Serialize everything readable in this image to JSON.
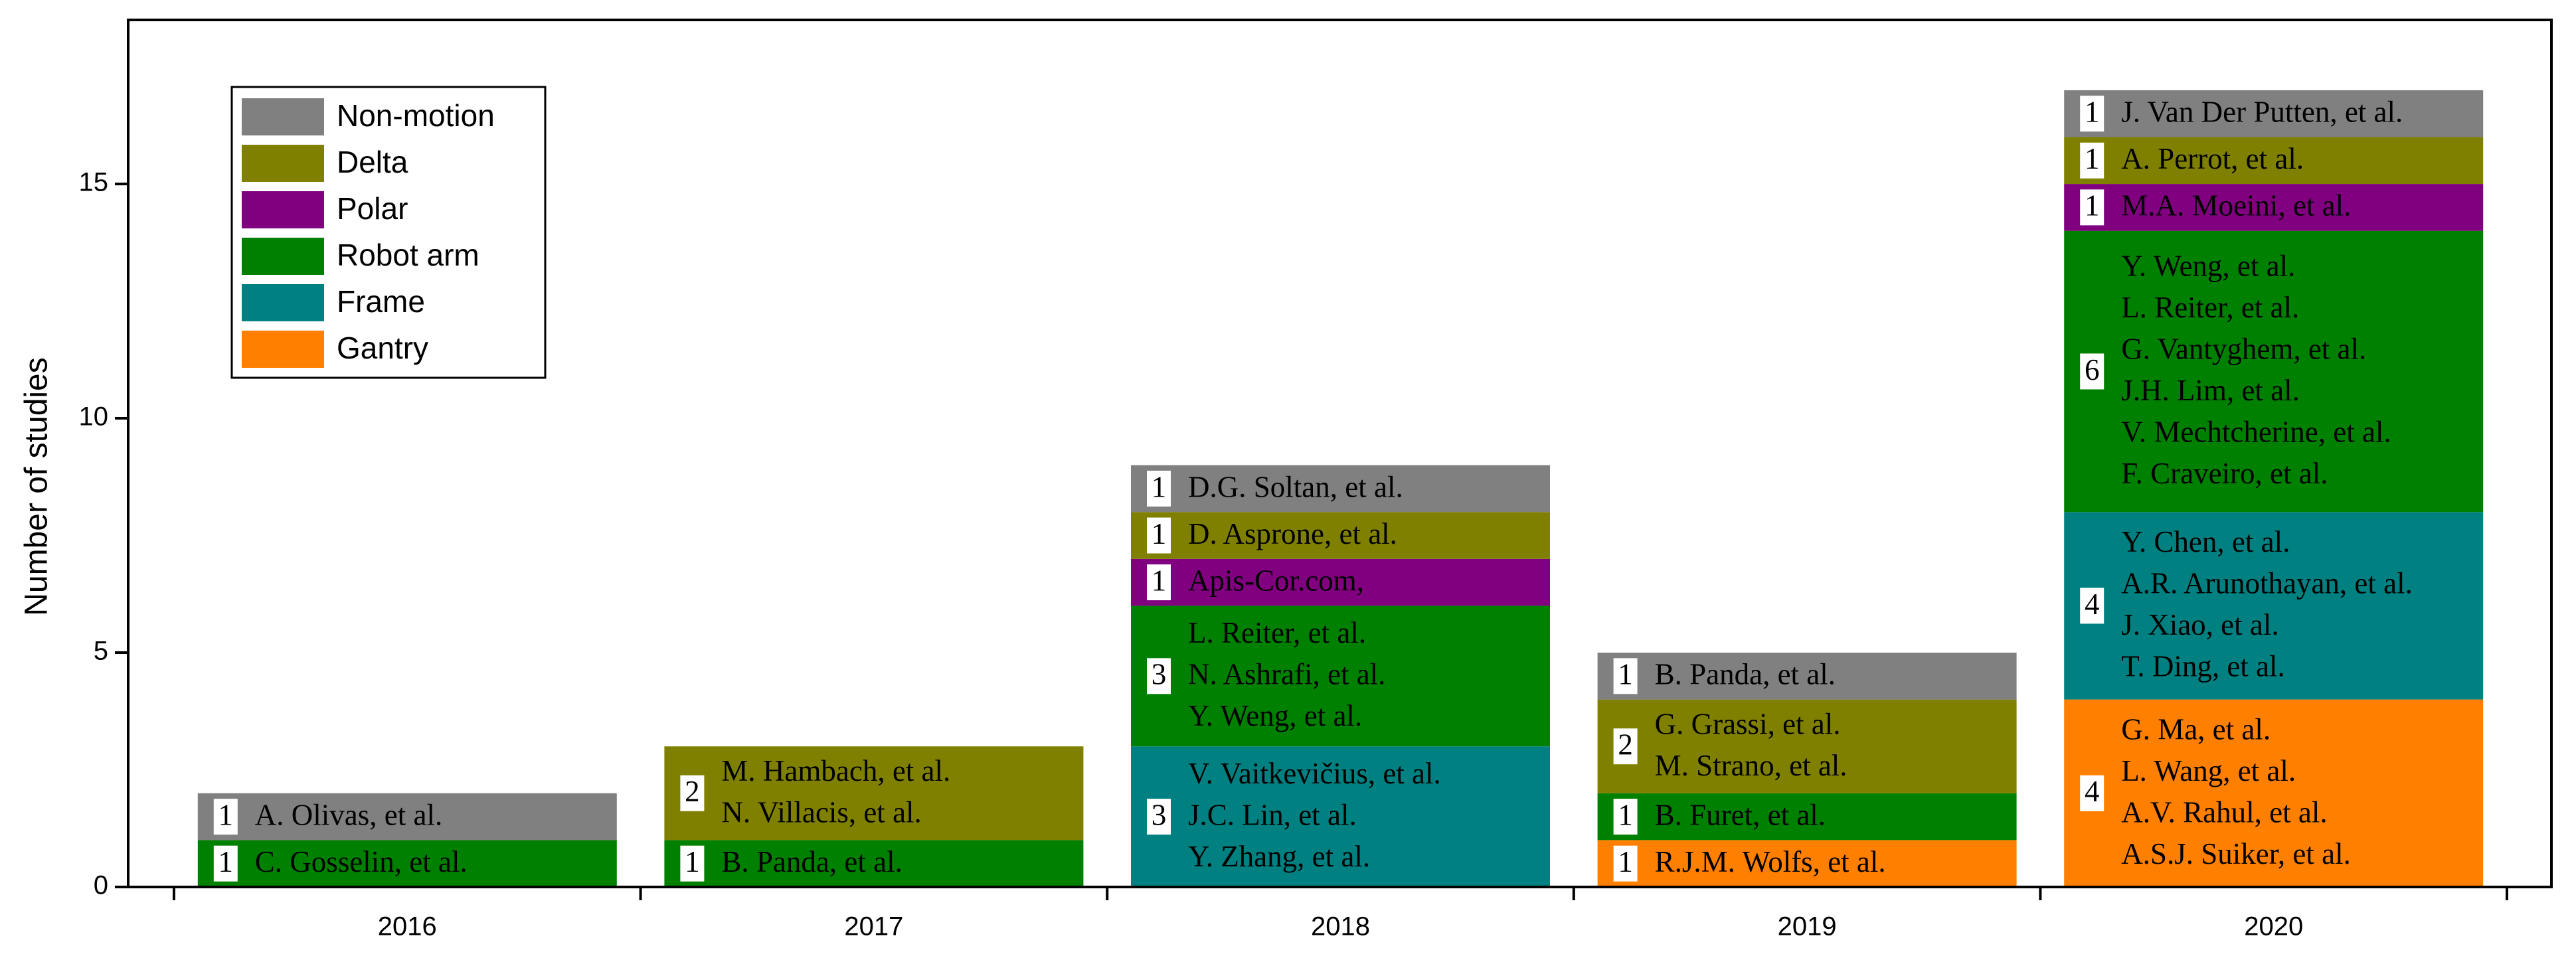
{
  "chart_data": {
    "type": "stacked-bar",
    "ylabel": "Number of studies",
    "categories": [
      "2016",
      "2017",
      "2018",
      "2019",
      "2020"
    ],
    "ylim": [
      0,
      18.5
    ],
    "yticks": [
      0,
      5,
      10,
      15
    ],
    "series": [
      {
        "name": "Gantry",
        "color": "#ff7f00",
        "values": [
          0,
          0,
          0,
          1,
          4
        ],
        "authors": [
          [],
          [],
          [],
          [
            "R.J.M. Wolfs, et al."
          ],
          [
            "G. Ma, et al.",
            "L. Wang, et al.",
            "A.V. Rahul, et al.",
            "A.S.J. Suiker, et al."
          ]
        ]
      },
      {
        "name": "Frame",
        "color": "#008080",
        "values": [
          0,
          0,
          3,
          0,
          4
        ],
        "authors": [
          [],
          [],
          [
            "V. Vaitkevičius, et al.",
            "J.C. Lin, et al.",
            "Y. Zhang, et al."
          ],
          [],
          [
            "Y. Chen, et al.",
            "A.R. Arunothayan, et al.",
            "J. Xiao, et al.",
            "T. Ding, et al."
          ]
        ]
      },
      {
        "name": "Robot arm",
        "color": "#008000",
        "values": [
          1,
          1,
          3,
          1,
          6
        ],
        "authors": [
          [
            "C. Gosselin, et al."
          ],
          [
            "B. Panda, et al."
          ],
          [
            "L. Reiter, et al.",
            "N. Ashrafi, et al.",
            "Y. Weng, et al."
          ],
          [
            "B. Furet, et al."
          ],
          [
            "Y. Weng, et al.",
            "L. Reiter, et al.",
            "G. Vantyghem, et al.",
            "J.H. Lim, et al.",
            "V. Mechtcherine, et al.",
            "F. Craveiro, et al."
          ]
        ]
      },
      {
        "name": "Polar",
        "color": "#800080",
        "values": [
          0,
          0,
          1,
          0,
          1
        ],
        "authors": [
          [],
          [],
          [
            "Apis-Cor.com,"
          ],
          [],
          [
            "M.A. Moeini, et al."
          ]
        ]
      },
      {
        "name": "Delta",
        "color": "#808000",
        "values": [
          0,
          2,
          1,
          2,
          1
        ],
        "authors": [
          [],
          [
            "M. Hambach, et al.",
            "N. Villacis, et al."
          ],
          [
            "D. Asprone, et al."
          ],
          [
            "G. Grassi, et al.",
            "M. Strano, et al."
          ],
          [
            "A. Perrot, et al."
          ]
        ]
      },
      {
        "name": "Non-motion",
        "color": "#808080",
        "values": [
          1,
          0,
          1,
          1,
          1
        ],
        "authors": [
          [
            "A. Olivas, et al."
          ],
          [],
          [
            "D.G. Soltan, et al."
          ],
          [
            "B. Panda, et al."
          ],
          [
            "J. Van Der Putten, et al."
          ]
        ]
      }
    ]
  }
}
